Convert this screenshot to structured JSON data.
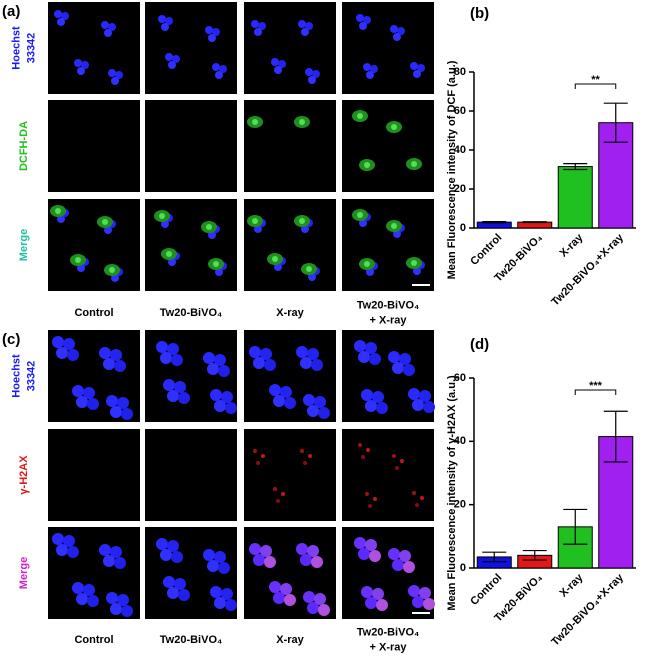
{
  "panels": [
    {
      "label": "(a)",
      "rows": [
        [
          "Hoechst",
          "33342"
        ],
        [
          "DCFH-DA"
        ],
        [
          "Merge"
        ]
      ],
      "columns": [
        [
          "Control"
        ],
        [
          "Tw20-BiVO₄"
        ],
        [
          "X-ray"
        ],
        [
          "Tw20-BiVO₄",
          "+ X-ray"
        ]
      ]
    },
    {
      "label": "(c)",
      "rows": [
        [
          "Hoechst",
          "33342"
        ],
        [
          "γ-H2AX"
        ],
        [
          "Merge"
        ]
      ],
      "columns": [
        [
          "Control"
        ],
        [
          "Tw20-BiVO₄"
        ],
        [
          "X-ray"
        ],
        [
          "Tw20-BiVO₄",
          "+ X-ray"
        ]
      ]
    }
  ],
  "chart_data": [
    {
      "type": "bar",
      "panel_label": "(b)",
      "y_label": "Mean Fluorescence intensity of DCF (a.u.)",
      "categories": [
        "Control",
        "Tw20-BiVO₄",
        "X-ray",
        "Tw20-BiVO₄+X-ray"
      ],
      "values": [
        3,
        3,
        31.5,
        54
      ],
      "errors": [
        0.3,
        0.2,
        1.5,
        10
      ],
      "colors": [
        "#1010e0",
        "#e01818",
        "#20c020",
        "#a020f0"
      ],
      "ylim": [
        0,
        80
      ],
      "yticks": [
        0,
        20,
        40,
        60,
        80
      ],
      "significance": "**"
    },
    {
      "type": "bar",
      "panel_label": "(d)",
      "y_label": "Mean Fluorescence intensity of γ-H2AX (a.u.)",
      "categories": [
        "Control",
        "Tw20-BiVO₄",
        "X-ray",
        "Tw20-BiVO₄+X-ray"
      ],
      "values": [
        3.5,
        4,
        13,
        41.5
      ],
      "errors": [
        1.5,
        1.5,
        5.5,
        8
      ],
      "colors": [
        "#1010e0",
        "#e01818",
        "#20c020",
        "#a020f0"
      ],
      "ylim": [
        0,
        60
      ],
      "yticks": [
        0,
        20,
        40,
        60
      ],
      "significance": "***"
    }
  ]
}
